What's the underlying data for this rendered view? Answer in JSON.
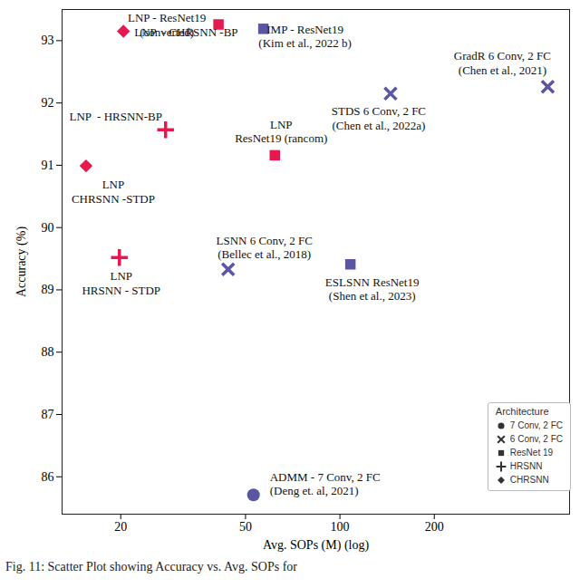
{
  "chart_data": {
    "type": "scatter",
    "caption": "Fig. 11: Scatter Plot showing Accuracy vs. Avg. SOPs for",
    "x_label": "Avg. SOPs (M) (log)",
    "y_label": "Accuracy (%)",
    "log": "x",
    "xlim": [
      13,
      540
    ],
    "xticks": [
      20,
      50,
      100,
      200
    ],
    "ylim": [
      85.4,
      93.5
    ],
    "yticks": [
      86,
      87,
      88,
      89,
      90,
      91,
      92,
      93
    ],
    "grid": false,
    "legend": "bottom-right",
    "legend_title": "Architecture",
    "series": [
      {
        "name": "7 Conv, 2 FC",
        "marker": "circle",
        "points": [
          {
            "label": [
              "ADMM - 7 Conv, 2 FC",
              "(Deng et. al, 2021)"
            ],
            "x": 53,
            "y": 85.71,
            "color": "#5a56a3"
          }
        ]
      },
      {
        "name": "6 Conv, 2 FC",
        "marker": "cross",
        "points": [
          {
            "label": [
              "LSNN 6 Conv, 2 FC",
              "(Bellec et al., 2018)"
            ],
            "x": 44,
            "y": 89.33,
            "color": "#5a56a3"
          },
          {
            "label": [
              "STDS 6 Conv, 2 FC",
              "(Chen et al., 2022a)"
            ],
            "x": 145,
            "y": 92.15,
            "color": "#5a56a3"
          },
          {
            "label": [
              "GradR 6 Conv, 2 FC",
              "(Chen et al., 2021)"
            ],
            "x": 460,
            "y": 92.26,
            "color": "#5a56a3"
          }
        ]
      },
      {
        "name": "ResNet 19",
        "marker": "square",
        "points": [
          {
            "label": [
              "LNP - ResNet19",
              "(converted)"
            ],
            "x": 41,
            "y": 93.26,
            "color": "#e5194d"
          },
          {
            "label": [
              "IMP - ResNet19",
              "(Kim et al., 2022 b)"
            ],
            "x": 57,
            "y": 93.19,
            "color": "#5a56a3"
          },
          {
            "label": [
              "LNP",
              "ResNet19 (rancom)"
            ],
            "x": 62,
            "y": 91.16,
            "color": "#e5194d"
          },
          {
            "label": [
              "ESLSNN ResNet19",
              "(Shen et al., 2023)"
            ],
            "x": 108,
            "y": 89.41,
            "color": "#5a56a3"
          }
        ]
      },
      {
        "name": "HRSNN",
        "marker": "plus",
        "points": [
          {
            "label": [
              "LNP  - HRSNN-BP"
            ],
            "x": 27.8,
            "y": 91.57,
            "color": "#e5194d"
          },
          {
            "label": [
              "LNP",
              "HRSNN - STDP"
            ],
            "x": 19.8,
            "y": 89.52,
            "color": "#e5194d"
          }
        ]
      },
      {
        "name": "CHRSNN",
        "marker": "diamond",
        "points": [
          {
            "label": [
              "LNP  - CHRSNN -BP"
            ],
            "x": 20.4,
            "y": 93.15,
            "color": "#e5194d"
          },
          {
            "label": [
              "LNP",
              "CHRSNN -STDP"
            ],
            "x": 15.5,
            "y": 90.99,
            "color": "#e5194d"
          }
        ]
      }
    ]
  }
}
